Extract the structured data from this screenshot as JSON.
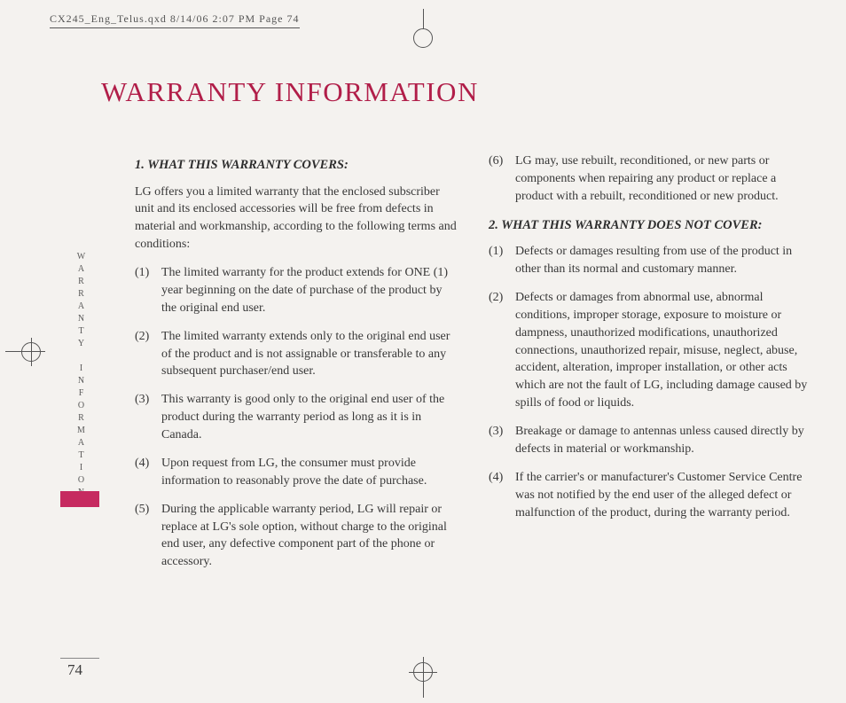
{
  "print_header": "CX245_Eng_Telus.qxd  8/14/06  2:07 PM  Page 74",
  "side_label": "WARRANTY INFORMATION",
  "page_number": "74",
  "title": "WARRANTY INFORMATION",
  "colors": {
    "accent": "#b11e49",
    "block": "#c62a60",
    "text": "#383838",
    "background": "#f4f2ef"
  },
  "left_column": {
    "head1": "1. WHAT THIS WARRANTY COVERS:",
    "intro1": "LG offers you a limited warranty that the enclosed subscriber unit and its enclosed accessories will be free from defects in material and workmanship, according to the following terms and conditions:",
    "items1": [
      {
        "n": "(1)",
        "t": "The limited warranty for the product extends for ONE (1) year beginning on the date of purchase of the product by the original end user."
      },
      {
        "n": "(2)",
        "t": "The limited warranty extends only to the original end user of the product and is not assignable or transferable to any subsequent purchaser/end user."
      },
      {
        "n": "(3)",
        "t": "This warranty is good only to the original end user of the product during the warranty period as long as it is in Canada."
      },
      {
        "n": "(4)",
        "t": "Upon request from LG, the consumer must provide information to reasonably prove the date of purchase."
      },
      {
        "n": "(5)",
        "t": "During the applicable warranty period, LG will repair or replace at LG's sole option, without charge to the original end user, any defective component part of the phone or accessory."
      }
    ]
  },
  "right_column": {
    "tail_item": {
      "n": "(6)",
      "t": "LG may, use rebuilt, reconditioned, or new parts or components when repairing any product or replace a product with a rebuilt, reconditioned or new product."
    },
    "head2": "2. WHAT THIS WARRANTY DOES NOT COVER:",
    "items2": [
      {
        "n": "(1)",
        "t": "Defects or damages resulting from use of the product in other than its normal and customary manner."
      },
      {
        "n": "(2)",
        "t": "Defects or damages from abnormal use, abnormal conditions, improper storage, exposure to moisture or dampness, unauthorized modifications, unauthorized connections, unauthorized repair, misuse, neglect, abuse, accident, alteration, improper installation, or other acts which are not the fault of LG, including damage caused by spills of food or liquids."
      },
      {
        "n": "(3)",
        "t": "Breakage or damage to antennas unless caused directly by defects in material or workmanship."
      },
      {
        "n": "(4)",
        "t": "If the carrier's or manufacturer's Customer Service Centre was not notified by the end user of the alleged defect or malfunction of the product, during the warranty period."
      }
    ]
  }
}
